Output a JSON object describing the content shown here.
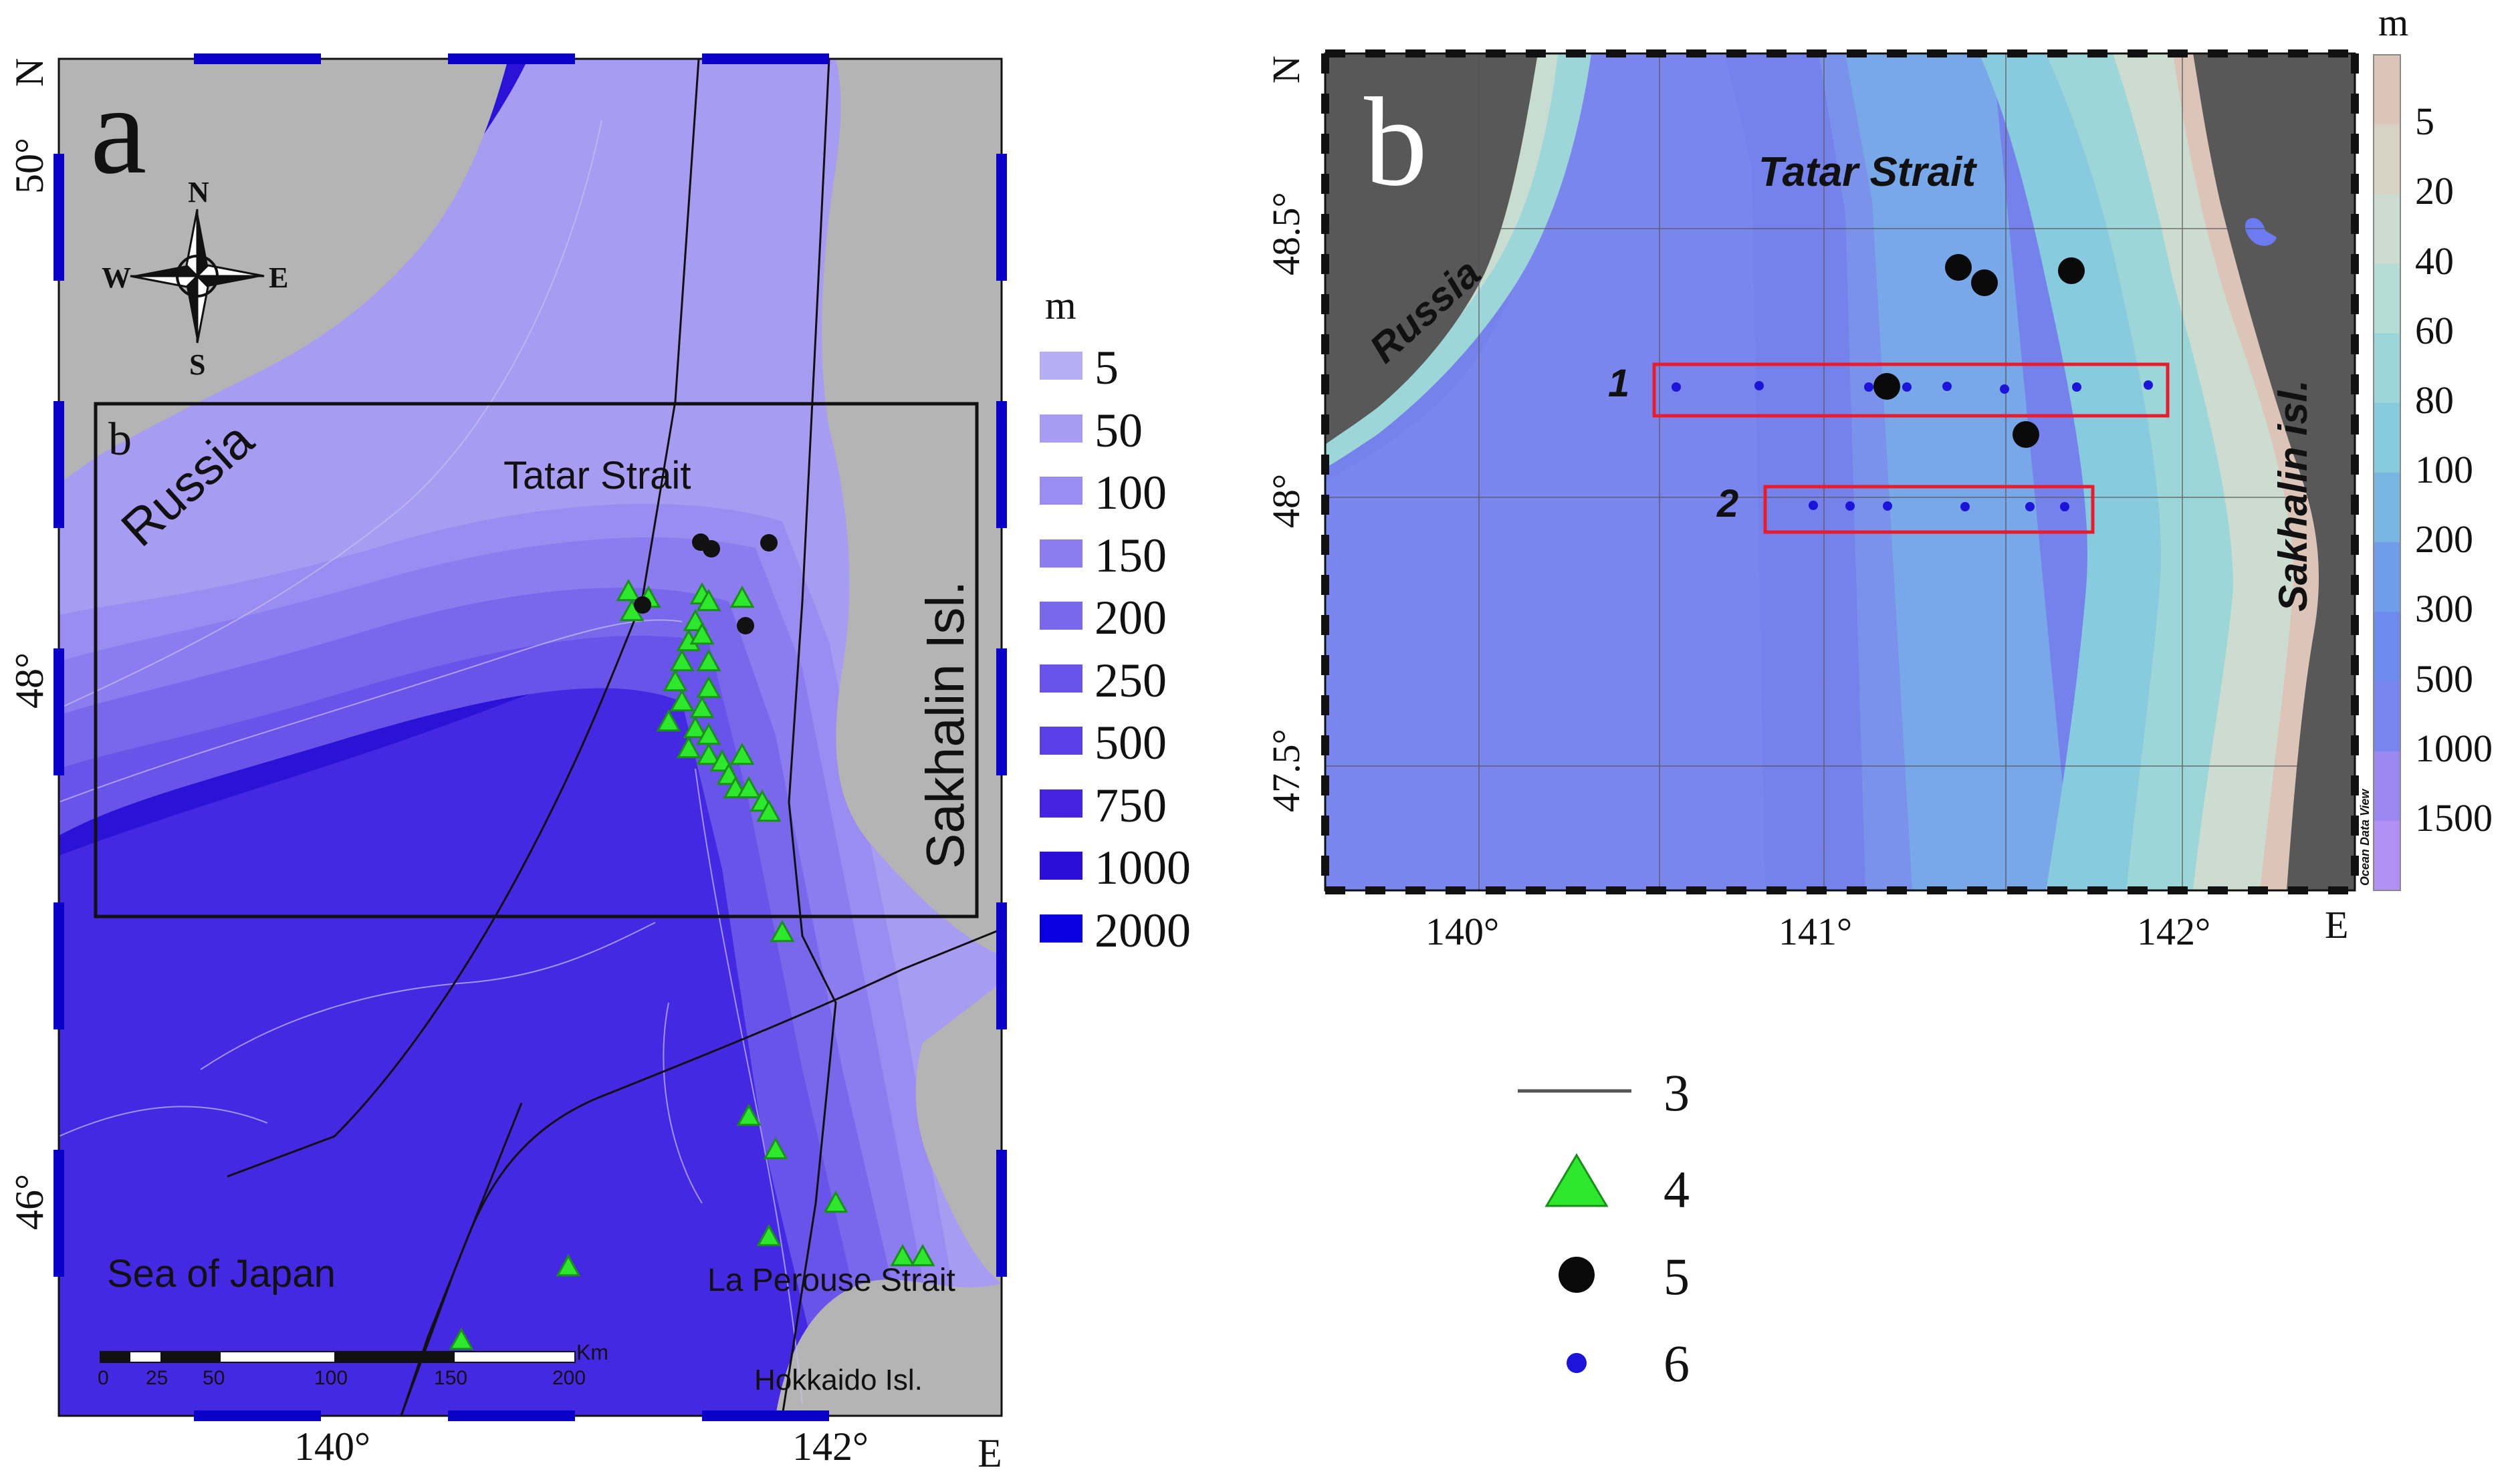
{
  "panel_a": {
    "letter": "a",
    "inset_letter": "b",
    "compass": {
      "n": "N",
      "s": "S",
      "e": "E",
      "w": "W"
    },
    "labels": {
      "russia": "Russia",
      "tatar_strait": "Tatar Strait",
      "sakhalin": "Sakhalin Isl.",
      "sea_of_japan": "Sea of Japan",
      "la_perouse": "La Perouse Strait",
      "hokkaido": "Hokkaido Isl."
    },
    "lat_axis": {
      "north": "N",
      "ticks": [
        "50°",
        "48°",
        "46°"
      ]
    },
    "lon_axis": {
      "east": "E",
      "ticks": [
        "140°",
        "142°"
      ]
    },
    "scale_bar": {
      "unit": "Km",
      "ticks": [
        "0",
        "25",
        "50",
        "100",
        "150",
        "200"
      ]
    },
    "legend": {
      "unit": "m",
      "items": [
        {
          "label": "5",
          "color": "#b7adf4"
        },
        {
          "label": "50",
          "color": "#a79cf2"
        },
        {
          "label": "100",
          "color": "#9a8cf0"
        },
        {
          "label": "150",
          "color": "#8c7cef"
        },
        {
          "label": "200",
          "color": "#7a68ec"
        },
        {
          "label": "250",
          "color": "#6a53e8"
        },
        {
          "label": "500",
          "color": "#5a3fe6"
        },
        {
          "label": "750",
          "color": "#4424e2"
        },
        {
          "label": "1000",
          "color": "#2b0fd8"
        },
        {
          "label": "2000",
          "color": "#0a00e0"
        }
      ]
    }
  },
  "panel_b": {
    "letter": "b",
    "labels": {
      "russia": "Russia",
      "tatar_strait": "Tatar Strait",
      "sakhalin": "Sakhalin isl."
    },
    "lat_axis": {
      "north": "N",
      "ticks": [
        "48.5°",
        "48°",
        "47.5°"
      ]
    },
    "lon_axis": {
      "east": "E",
      "ticks": [
        "140°",
        "141°",
        "142°"
      ]
    },
    "transects": [
      "1",
      "2"
    ],
    "watermark": "Ocean Data View",
    "colorbar": {
      "unit": "m",
      "ticks": [
        "5",
        "20",
        "40",
        "60",
        "80",
        "100",
        "200",
        "300",
        "500",
        "1000",
        "1500"
      ],
      "colors": [
        "#dcc4b8",
        "#d8d2c4",
        "#ccdcd0",
        "#b6dcd6",
        "#9cd6d8",
        "#88cade",
        "#7ab6e2",
        "#6e9eea",
        "#6e8aee",
        "#7a84f0",
        "#9a88f0",
        "#b090f2"
      ]
    }
  },
  "legend": {
    "items": [
      {
        "symbol": "line",
        "label": "3"
      },
      {
        "symbol": "triangle",
        "label": "4"
      },
      {
        "symbol": "big-dot",
        "label": "5"
      },
      {
        "symbol": "small-dot",
        "label": "6"
      }
    ]
  }
}
